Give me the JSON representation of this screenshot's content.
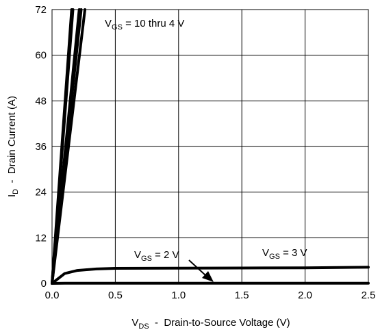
{
  "chart_data": {
    "type": "line",
    "xlabel_main": "V",
    "xlabel_sub": "DS",
    "xlabel_rest": "  -  Drain-to-Source Voltage (V)",
    "ylabel_main": "I",
    "ylabel_sub": "D",
    "ylabel_rest": "  -  Drain Current (A)",
    "xlim": [
      0,
      2.5
    ],
    "ylim": [
      0,
      72
    ],
    "x_ticks": [
      "0.0",
      "0.5",
      "1.0",
      "1.5",
      "2.0",
      "2.5"
    ],
    "y_ticks": [
      "0",
      "12",
      "24",
      "36",
      "48",
      "60",
      "72"
    ],
    "grid": true,
    "series": [
      {
        "values": [
          [
            0,
            0
          ],
          [
            0.155,
            72
          ]
        ]
      },
      {
        "values": [
          [
            0,
            0
          ],
          [
            0.165,
            72
          ]
        ]
      },
      {
        "values": [
          [
            0,
            0
          ],
          [
            0.215,
            72
          ]
        ]
      },
      {
        "values": [
          [
            0,
            0
          ],
          [
            0.23,
            72
          ]
        ]
      },
      {
        "values": [
          [
            0,
            0
          ],
          [
            0.26,
            72
          ]
        ]
      },
      {
        "values": [
          [
            0,
            0
          ],
          [
            0.1,
            2.6
          ],
          [
            0.2,
            3.4
          ],
          [
            0.35,
            3.8
          ],
          [
            0.5,
            3.95
          ],
          [
            1.0,
            4.0
          ],
          [
            1.5,
            4.05
          ],
          [
            2.0,
            4.1
          ],
          [
            2.5,
            4.25
          ]
        ]
      },
      {
        "values": [
          [
            0,
            0
          ],
          [
            0.1,
            0.05
          ],
          [
            0.5,
            0.05
          ],
          [
            1.0,
            0.05
          ],
          [
            2.5,
            0.05
          ]
        ]
      }
    ],
    "annotations": {
      "top": {
        "main": "V",
        "sub": "GS",
        "rest": " = 10 thru 4 V"
      },
      "two": {
        "main": "V",
        "sub": "GS",
        "rest": " = 2 V"
      },
      "three": {
        "main": "V",
        "sub": "GS",
        "rest": " = 3 V"
      }
    }
  }
}
